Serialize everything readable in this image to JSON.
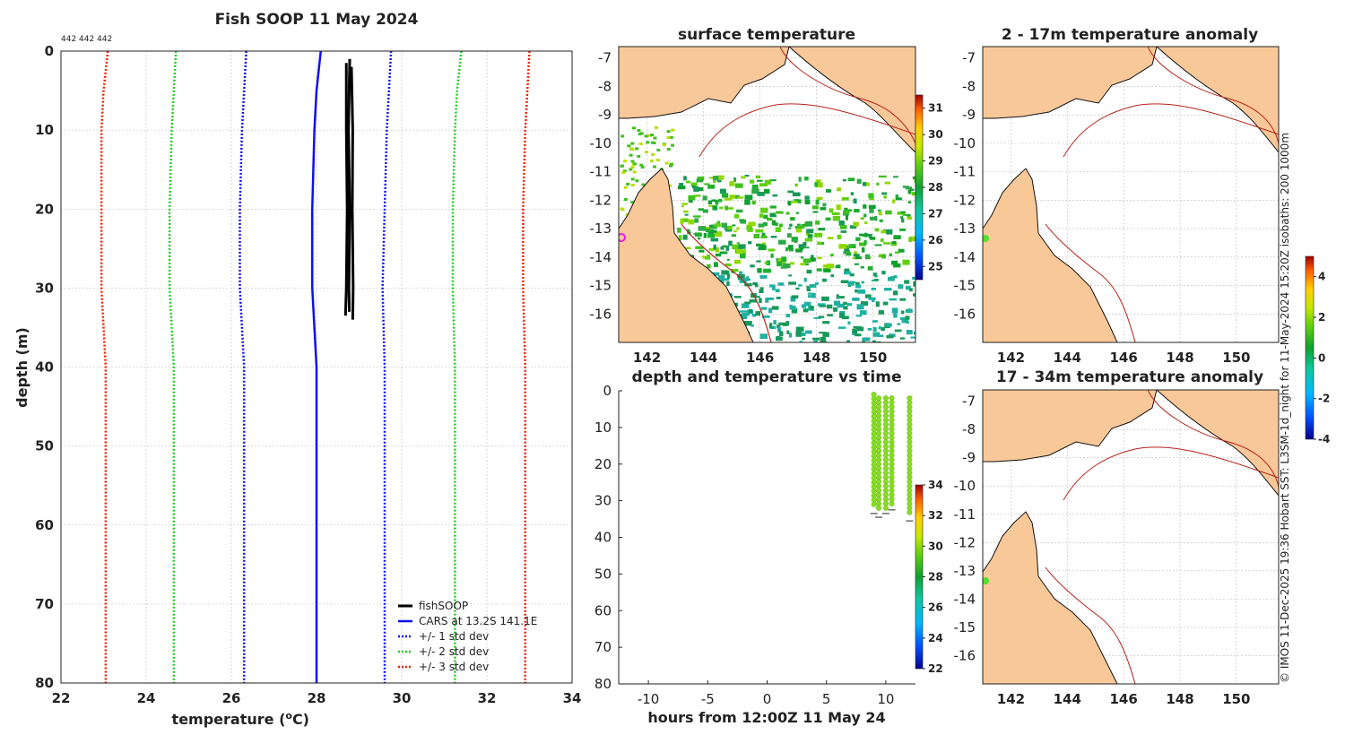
{
  "colors": {
    "fishSOOP": "#000000",
    "cars": "#1010ee",
    "std1": "#1010ee",
    "std2": "#22cc22",
    "std3": "#ee2200",
    "land": "#f8c898",
    "contour": "#b8221a"
  },
  "profile": {
    "title": "Fish SOOP 11 May 2024",
    "id_label": "442 442 442",
    "xlabel": "temperature (",
    "xlabel_sup": "o",
    "xlabel_end": "C)",
    "ylabel": "depth (m)",
    "xticks": [
      "22",
      "24",
      "26",
      "28",
      "30",
      "32",
      "34"
    ],
    "yticks": [
      "0",
      "10",
      "20",
      "30",
      "40",
      "50",
      "60",
      "70",
      "80"
    ],
    "legend": [
      "fishSOOP",
      "CARS at 13.2S 141.1E",
      "+/- 1 std dev",
      "+/- 2 std dev",
      "+/- 3 std dev"
    ]
  },
  "chart_data": [
    {
      "type": "line",
      "title": "Fish SOOP 11 May 2024",
      "xlabel": "temperature (oC)",
      "ylabel": "depth (m)",
      "xlim": [
        22,
        34
      ],
      "ylim": [
        80,
        0
      ],
      "series": [
        {
          "name": "CARS at 13.2S 141.1E",
          "depth": [
            0,
            5,
            10,
            20,
            30,
            40,
            80
          ],
          "temp": [
            28.1,
            28.0,
            27.95,
            27.9,
            27.9,
            28.0,
            28.0
          ]
        },
        {
          "name": "+1 std dev",
          "depth": [
            0,
            5,
            10,
            20,
            30,
            40,
            80
          ],
          "temp": [
            29.75,
            29.7,
            29.65,
            29.6,
            29.55,
            29.6,
            29.6
          ]
        },
        {
          "name": "-1 std dev",
          "depth": [
            0,
            5,
            10,
            20,
            30,
            40,
            80
          ],
          "temp": [
            26.35,
            26.3,
            26.25,
            26.2,
            26.2,
            26.3,
            26.3
          ]
        },
        {
          "name": "+2 std dev",
          "depth": [
            0,
            5,
            10,
            20,
            30,
            40,
            80
          ],
          "temp": [
            31.4,
            31.3,
            31.25,
            31.2,
            31.2,
            31.25,
            31.25
          ]
        },
        {
          "name": "-2 std dev",
          "depth": [
            0,
            5,
            10,
            20,
            30,
            40,
            80
          ],
          "temp": [
            24.7,
            24.65,
            24.6,
            24.55,
            24.55,
            24.65,
            24.65
          ]
        },
        {
          "name": "+3 std dev",
          "depth": [
            0,
            5,
            10,
            20,
            30,
            40,
            80
          ],
          "temp": [
            33.0,
            32.95,
            32.9,
            32.85,
            32.85,
            32.9,
            32.9
          ]
        },
        {
          "name": "-3 std dev",
          "depth": [
            0,
            5,
            10,
            20,
            30,
            40,
            80
          ],
          "temp": [
            23.1,
            23.0,
            22.95,
            22.95,
            22.95,
            23.05,
            23.05
          ]
        },
        {
          "name": "fishSOOP",
          "casts": [
            {
              "depth": [
                1.5,
                10,
                20,
                30,
                33.5
              ],
              "temp": [
                28.7,
                28.7,
                28.72,
                28.7,
                28.68
              ]
            },
            {
              "depth": [
                2,
                10,
                20,
                30,
                34
              ],
              "temp": [
                28.82,
                28.85,
                28.84,
                28.86,
                28.85
              ]
            },
            {
              "depth": [
                1,
                10,
                20,
                30,
                33
              ],
              "temp": [
                28.78,
                28.75,
                28.78,
                28.76,
                28.77
              ]
            }
          ]
        }
      ]
    },
    {
      "type": "scatter",
      "title": "depth and temperature vs time",
      "xlabel": "hours from 12:00Z 11 May 24",
      "ylabel": "",
      "xlim": [
        -12.5,
        12.5
      ],
      "ylim": [
        80,
        0
      ],
      "xticks": [
        "-10",
        "-5",
        "0",
        "5",
        "10"
      ],
      "yticks": [
        "0",
        "10",
        "20",
        "30",
        "40",
        "50",
        "60",
        "70",
        "80"
      ],
      "colorbar": {
        "min": 22,
        "max": 34,
        "ticks": [
          "22",
          "24",
          "26",
          "28",
          "30",
          "32",
          "34"
        ]
      },
      "casts": [
        {
          "hour": 9.0,
          "depth_min": 1,
          "depth_max": 32,
          "temp": 29.8
        },
        {
          "hour": 9.4,
          "depth_min": 2,
          "depth_max": 33,
          "temp": 29.8
        },
        {
          "hour": 10.0,
          "depth_min": 2,
          "depth_max": 32,
          "temp": 29.8
        },
        {
          "hour": 10.5,
          "depth_min": 2,
          "depth_max": 31,
          "temp": 29.7
        },
        {
          "hour": 12.0,
          "depth_min": 2,
          "depth_max": 34,
          "temp": 29.8
        }
      ]
    },
    {
      "type": "heatmap",
      "title": "surface temperature",
      "lon_ticks": [
        "142",
        "144",
        "146",
        "148",
        "150"
      ],
      "lat_ticks": [
        "-7",
        "-8",
        "-9",
        "-10",
        "-11",
        "-12",
        "-13",
        "-14",
        "-15",
        "-16"
      ],
      "colorbar": {
        "min": 24.5,
        "max": 31.5,
        "ticks": [
          "25",
          "26",
          "27",
          "28",
          "29",
          "30",
          "31"
        ]
      }
    },
    {
      "type": "heatmap",
      "title": "2 - 17m temperature anomaly",
      "lon_ticks": [
        "142",
        "144",
        "146",
        "148",
        "150"
      ],
      "lat_ticks": [
        "-7",
        "-8",
        "-9",
        "-10",
        "-11",
        "-12",
        "-13",
        "-14",
        "-15",
        "-16"
      ],
      "colorbar": {
        "min": -4,
        "max": 5,
        "ticks": [
          "-4",
          "-2",
          "0",
          "2",
          "4"
        ]
      }
    },
    {
      "type": "heatmap",
      "title": "17 - 34m temperature anomaly",
      "lon_ticks": [
        "142",
        "144",
        "146",
        "148",
        "150"
      ],
      "lat_ticks": [
        "-7",
        "-8",
        "-9",
        "-10",
        "-11",
        "-12",
        "-13",
        "-14",
        "-15",
        "-16"
      ]
    }
  ],
  "side_note": "© IMOS 11-Dec-2025 19:36 Hobart SST: L3SM-1d_night for 11-May-2024 15:20Z  isobaths: 200  1000m"
}
